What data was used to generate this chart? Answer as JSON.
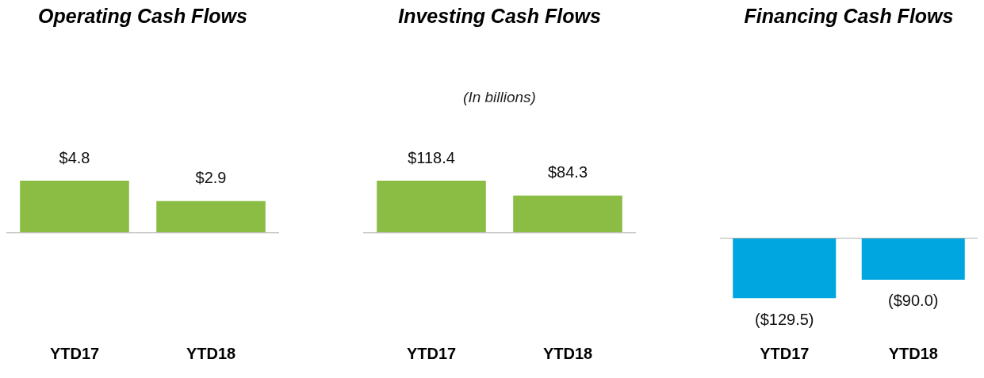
{
  "chart_data": [
    {
      "type": "bar",
      "title": "Operating Cash Flows",
      "categories": [
        "YTD17",
        "YTD18"
      ],
      "values": [
        4.8,
        2.9
      ],
      "color": "#8bbd45",
      "value_labels": [
        "$4.8",
        "$2.9"
      ],
      "grid": false,
      "legend": false
    },
    {
      "type": "bar",
      "title": "Investing Cash Flows",
      "subtitle": "(In billions)",
      "categories": [
        "YTD17",
        "YTD18"
      ],
      "values": [
        118.4,
        84.3
      ],
      "color": "#8bbd45",
      "value_labels": [
        "$118.4",
        "$84.3"
      ],
      "grid": false,
      "legend": false
    },
    {
      "type": "bar",
      "title": "Financing Cash Flows",
      "categories": [
        "YTD17",
        "YTD18"
      ],
      "values": [
        -129.5,
        -90.0
      ],
      "color": "#00a6e0",
      "value_labels": [
        "($129.5)",
        "($90.0)"
      ],
      "grid": false,
      "legend": false
    }
  ]
}
